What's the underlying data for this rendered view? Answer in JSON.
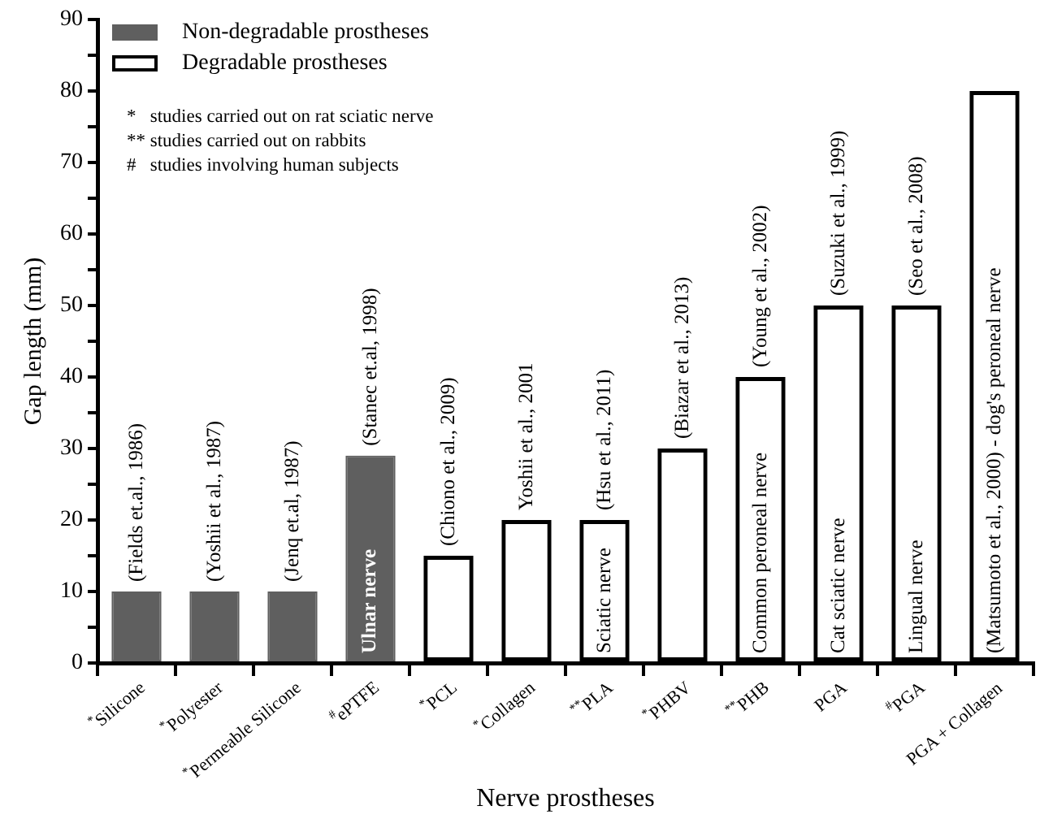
{
  "chart_data": {
    "type": "bar",
    "xlabel": "Nerve prostheses",
    "ylabel": "Gap length (mm)",
    "categories": [
      "$^{*}$Silicone",
      "$^{*}$Polyester",
      "$^{*}$Permeable Silicone",
      "$^{#}$ePTFE",
      "$^{*}$PCL",
      "$^{*}$Collagen",
      "$^{**}$PLA",
      "$^{*}$PHBV",
      "$^{**}$PHB",
      "PGA",
      "$^{#}$PGA",
      "PGA + Collagen"
    ],
    "series": [
      {
        "name": "Non-degradable prostheses",
        "color": "#5f5f5f",
        "values": [
          10,
          10,
          10,
          29,
          null,
          null,
          null,
          null,
          null,
          null,
          null,
          null
        ]
      },
      {
        "name": "Degradable prostheses",
        "color": "#000000",
        "values": [
          null,
          null,
          null,
          null,
          15,
          20,
          20,
          30,
          40,
          50,
          50,
          80
        ]
      }
    ],
    "ylim": [
      0,
      90
    ],
    "yticks": [
      0,
      {
        "value": 5,
        "label": null
      },
      10,
      {
        "value": 15,
        "label": null
      },
      20,
      {
        "value": 25,
        "label": null
      },
      30,
      {
        "value": 35,
        "label": null
      },
      40,
      {
        "value": 45,
        "label": null
      },
      50,
      {
        "value": 55,
        "label": null
      },
      60,
      {
        "value": 65,
        "label": null
      },
      70,
      {
        "value": 75,
        "label": null
      },
      80,
      {
        "value": 85,
        "label": null
      },
      90
    ],
    "grid": false,
    "legend": "top left",
    "annotations": [
      "*   studies carried out on rat sciatic nerve",
      "** studies carried out on rabbits",
      "#   studies involving human subjects",
      {
        "text": "(Fields et.al., 1986)",
        "x": "$^{*}$Silicone",
        "y": 10
      },
      {
        "text": "(Yoshii et al., 1987)",
        "x": "$^{*}$Polyester",
        "y": 10
      },
      {
        "text": "(Jenq et.al, 1987)",
        "x": "$^{*}$Permeable Silicone",
        "y": 10
      },
      {
        "text": "(Stanec et.al, 1998)",
        "x": "$^{#}$ePTFE",
        "y": 29
      },
      {
        "text": "Ulnar nerve",
        "x": "$^{#}$ePTFE",
        "y": 0
      },
      {
        "text": "(Chiono et al., 2009)",
        "x": "$^{*}$PCL",
        "y": 15
      },
      {
        "text": "Yoshii et al., 2001",
        "x": "$^{*}$Collagen",
        "y": 20
      },
      {
        "text": "(Hsu et al., 2011)",
        "x": "$^{**}$PLA",
        "y": 20
      },
      {
        "text": "Sciatic nerve",
        "x": "$^{**}$PLA",
        "y": 0
      },
      {
        "text": "(Biazar et al., 2013)",
        "x": "$^{*}$PHBV",
        "y": 30
      },
      {
        "text": "(Young et al., 2002)",
        "x": "$^{**}$PHB",
        "y": 40
      },
      {
        "text": "Common peroneal nerve",
        "x": "$^{**}$PHB",
        "y": 0
      },
      {
        "text": "(Suzuki et al., 1999)",
        "x": "PGA",
        "y": 50
      },
      {
        "text": "Cat sciatic nerve",
        "x": "PGA",
        "y": 0
      },
      {
        "text": "(Seo et al., 2008)",
        "x": "$^{#}$PGA",
        "y": 50
      },
      {
        "text": "Lingual nerve",
        "x": "$^{#}$PGA",
        "y": 0
      },
      {
        "text": "(Matsumoto et al., 2000) - dog's peroneal nerve",
        "x": "PGA + Collagen",
        "y": 0
      }
    ]
  }
}
